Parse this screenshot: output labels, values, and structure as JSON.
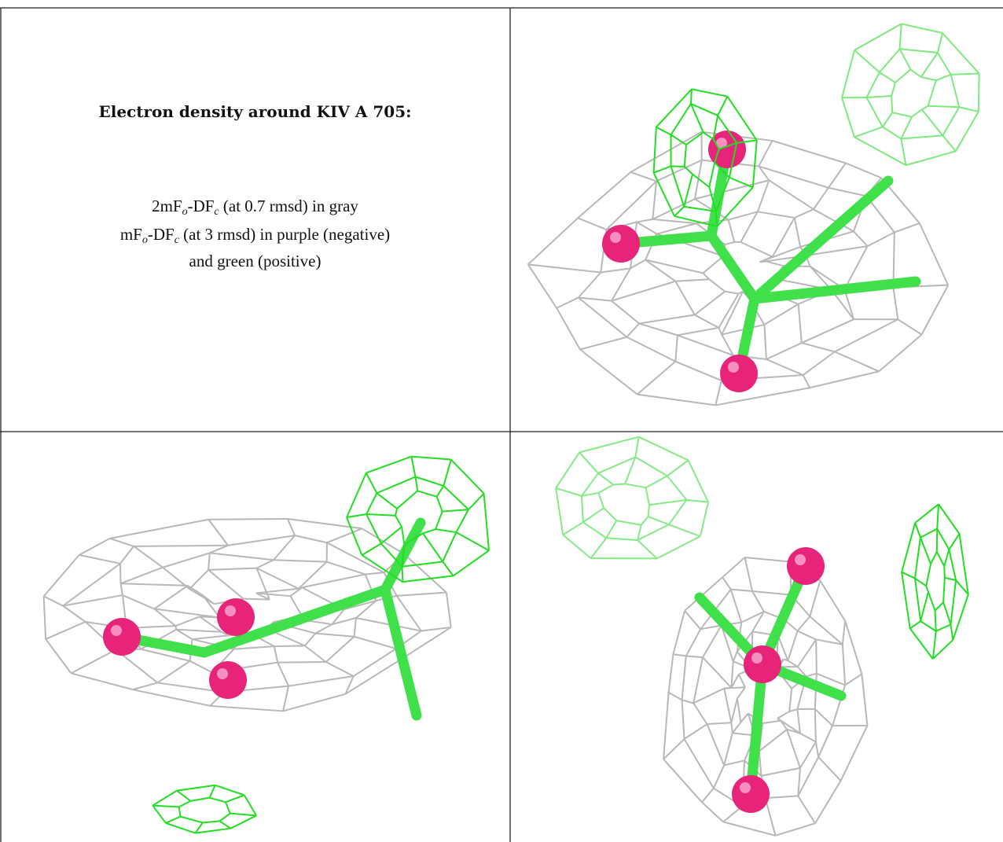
{
  "caption": {
    "title": "Electron density around KIV A 705:",
    "line1": {
      "a": "2mF",
      "b": "o",
      "c": "-DF",
      "d": "c",
      "e": " (at 0.7 rmsd) in gray"
    },
    "line2": {
      "a": "mF",
      "b": "o",
      "c": "-DF",
      "d": "c",
      "e": " (at 3 rmsd) in purple (negative)"
    },
    "line3": "and green (positive)"
  }
}
